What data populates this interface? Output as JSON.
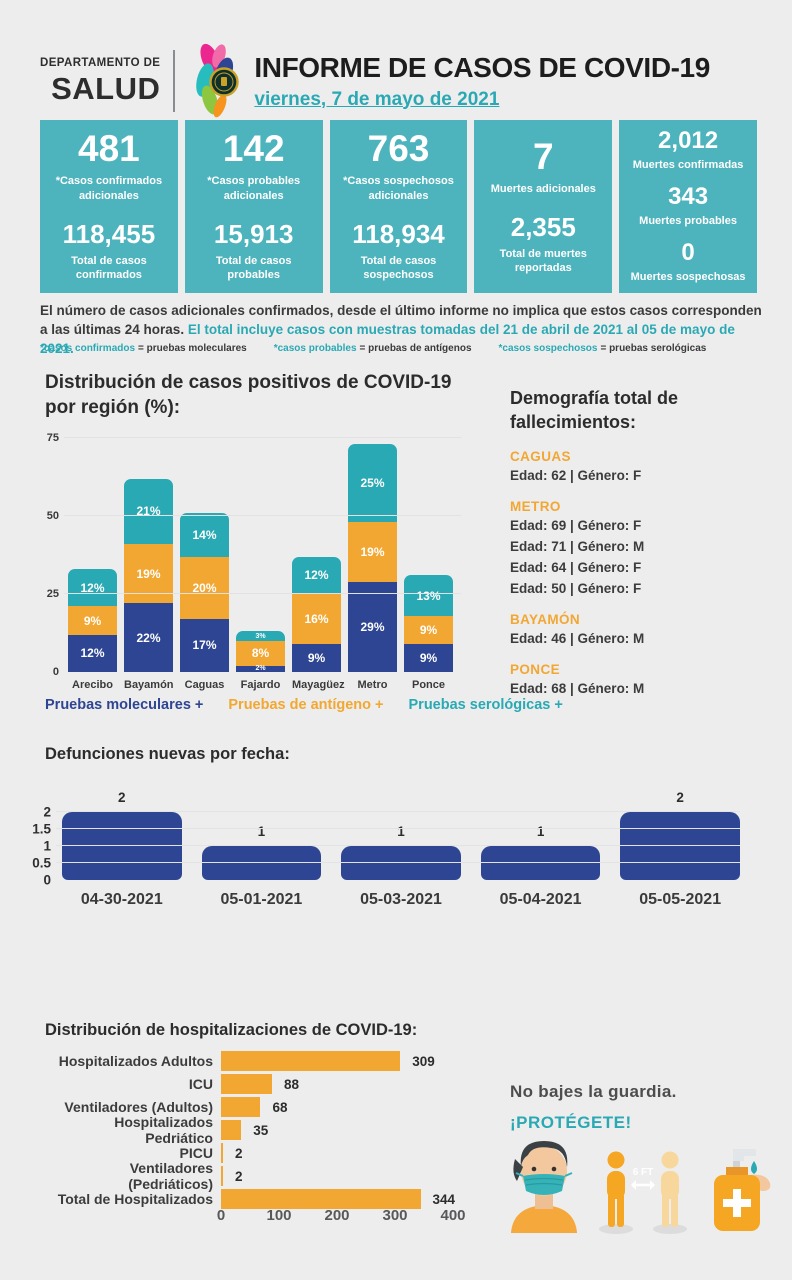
{
  "header": {
    "dept_line1": "DEPARTAMENTO DE",
    "dept_line2": "SALUD",
    "title": "INFORME DE CASOS DE COVID-19",
    "date": "viernes, 7 de mayo de 2021"
  },
  "stat_cards": [
    {
      "primary_value": "481",
      "primary_label": "*Casos confirmados adicionales",
      "secondary_value": "118,455",
      "secondary_label": "Total de casos confirmados"
    },
    {
      "primary_value": "142",
      "primary_label": "*Casos probables adicionales",
      "secondary_value": "15,913",
      "secondary_label": "Total de casos probables"
    },
    {
      "primary_value": "763",
      "primary_label": "*Casos sospechosos adicionales",
      "secondary_value": "118,934",
      "secondary_label": "Total de casos sospechosos"
    },
    {
      "primary_value": "7",
      "primary_label": "Muertes adicionales",
      "secondary_value": "2,355",
      "secondary_label": "Total de muertes reportadas"
    }
  ],
  "deaths_summary_card": {
    "rows": [
      {
        "value": "2,012",
        "label": "Muertes confirmadas"
      },
      {
        "value": "343",
        "label": "Muertes probables"
      },
      {
        "value": "0",
        "label": "Muertes sospechosas"
      }
    ]
  },
  "note": {
    "text_dark": "El número de casos adicionales confirmados, desde el último informe no implica que estos casos corresponden a las últimas 24 horas.",
    "text_teal": "El total incluye casos con muestras tomadas del 21 de abril de 2021 al 05 de mayo de 2021.",
    "footnotes": [
      {
        "term": "*casos confirmados",
        "definition": "= pruebas moleculares"
      },
      {
        "term": "*casos probables",
        "definition": "= pruebas de antígenos"
      },
      {
        "term": "*casos sospechosos",
        "definition": "= pruebas serológicas"
      }
    ]
  },
  "chart_data": [
    {
      "id": "region_stacked",
      "type": "bar",
      "stacked": true,
      "title": "Distribución de casos positivos de COVID-19 por región (%):",
      "categories": [
        "Arecibo",
        "Bayamón",
        "Caguas",
        "Fajardo",
        "Mayagüez",
        "Metro",
        "Ponce"
      ],
      "series": [
        {
          "name": "Pruebas moleculares +",
          "color": "#2e4593",
          "values": [
            12,
            22,
            17,
            2,
            9,
            29,
            9
          ]
        },
        {
          "name": "Pruebas de antígeno +",
          "color": "#f2a732",
          "values": [
            9,
            19,
            20,
            8,
            16,
            19,
            9
          ]
        },
        {
          "name": "Pruebas serológicas +",
          "color": "#29a9b4",
          "values": [
            12,
            21,
            14,
            3,
            12,
            25,
            13
          ]
        }
      ],
      "yticks": [
        0,
        25,
        50,
        75
      ],
      "ylim": [
        0,
        75
      ],
      "value_suffix": "%",
      "grid": true,
      "legend_position": "bottom"
    },
    {
      "id": "deaths_by_date",
      "type": "bar",
      "title": "Defunciones nuevas por fecha:",
      "categories": [
        "04-30-2021",
        "05-01-2021",
        "05-03-2021",
        "05-04-2021",
        "05-05-2021"
      ],
      "values": [
        2,
        1,
        1,
        1,
        2
      ],
      "yticks": [
        0,
        0.5,
        1,
        1.5,
        2
      ],
      "ylim": [
        0,
        2
      ],
      "bar_color": "#2e4593",
      "grid": true
    },
    {
      "id": "hospitalizations",
      "type": "bar",
      "orientation": "horizontal",
      "title": "Distribución de hospitalizaciones de COVID-19:",
      "categories": [
        "Hospitalizados Adultos",
        "ICU",
        "Ventiladores (Adultos)",
        "Hospitalizados Pedriático",
        "PICU",
        "Ventiladores (Pedriáticos)",
        "Total de Hospitalizados"
      ],
      "values": [
        309,
        88,
        68,
        35,
        2,
        2,
        344
      ],
      "xticks": [
        0,
        100,
        200,
        300,
        400
      ],
      "xlim": [
        0,
        400
      ],
      "bar_color": "#f2a732"
    }
  ],
  "demographics": {
    "title": "Demografía total de fallecimientos:",
    "groups": [
      {
        "region": "CAGUAS",
        "entries": [
          "Edad: 62 | Género: F"
        ]
      },
      {
        "region": "METRO",
        "entries": [
          "Edad: 69 | Género: F",
          "Edad: 71 | Género: M",
          "Edad: 64 | Género: F",
          "Edad: 50 | Género: F"
        ]
      },
      {
        "region": "BAYAMÓN",
        "entries": [
          "Edad: 46 | Género: M"
        ]
      },
      {
        "region": "PONCE",
        "entries": [
          "Edad: 68 | Género: M"
        ]
      }
    ]
  },
  "protect": {
    "line1": "No bajes la guardia.",
    "line2": "¡PROTÉGETE!",
    "distance_label": "6 FT"
  },
  "colors": {
    "background": "#ededed",
    "card_teal": "#4db3bd",
    "accent_teal": "#2aa9b4",
    "dark_blue": "#2e4593",
    "orange": "#f2a732",
    "dark_text": "#3a3a3a"
  }
}
